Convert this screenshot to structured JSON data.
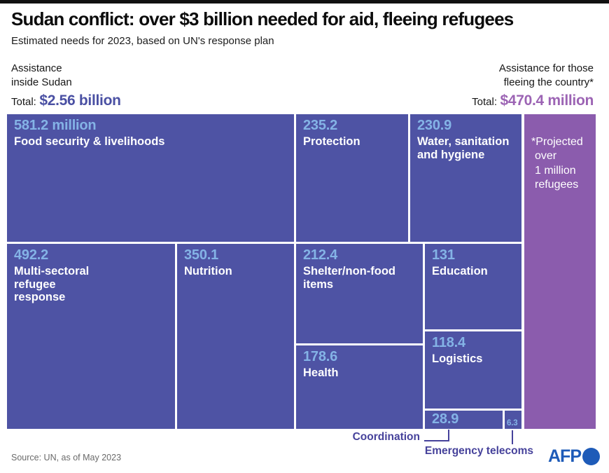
{
  "page": {
    "title": "Sudan conflict: over $3 billion needed for aid, fleeing refugees",
    "subtitle": "Estimated needs for 2023, based on UN's response plan",
    "source": "Source: UN, as of May 2023",
    "logo": "AFP"
  },
  "inside_sudan": {
    "label_lines": [
      "Assistance",
      "inside Sudan"
    ],
    "total_prefix": "Total:",
    "total_value": "$2.56 billion"
  },
  "fleeing": {
    "label_lines": [
      "Assistance for those",
      "fleeing the country*"
    ],
    "total_prefix": "Total:",
    "total_value": "$470.4 million",
    "note_lines": [
      "*Projected",
      "over",
      "1 million",
      "refugees"
    ]
  },
  "callouts": {
    "coordination": "Coordination",
    "telecoms": "Emergency telecoms"
  },
  "chart_data": {
    "type": "treemap",
    "title": "Sudan conflict: over $3 billion needed for aid, fleeing refugees",
    "subtitle": "Estimated needs for 2023, based on UN's response plan",
    "unit": "US$ millions",
    "groups": [
      {
        "name": "Assistance inside Sudan",
        "total_display": "$2.56 billion",
        "items": [
          {
            "id": "food",
            "label": "Food security & livelihoods",
            "label_lines": [
              "Food security & livelihoods"
            ],
            "value": 581.2,
            "display": "581.2 million"
          },
          {
            "id": "multi",
            "label": "Multi-sectoral refugee response",
            "label_lines": [
              "Multi-sectoral",
              "refugee",
              "response"
            ],
            "value": 492.2,
            "display": "492.2"
          },
          {
            "id": "nutrition",
            "label": "Nutrition",
            "label_lines": [
              "Nutrition"
            ],
            "value": 350.1,
            "display": "350.1"
          },
          {
            "id": "protection",
            "label": "Protection",
            "label_lines": [
              "Protection"
            ],
            "value": 235.2,
            "display": "235.2"
          },
          {
            "id": "wash",
            "label": "Water, sanitation and hygiene",
            "label_lines": [
              "Water, sanitation",
              "and hygiene"
            ],
            "value": 230.9,
            "display": "230.9"
          },
          {
            "id": "shelter",
            "label": "Shelter/non-food items",
            "label_lines": [
              "Shelter/non-food",
              "items"
            ],
            "value": 212.4,
            "display": "212.4"
          },
          {
            "id": "health",
            "label": "Health",
            "label_lines": [
              "Health"
            ],
            "value": 178.6,
            "display": "178.6"
          },
          {
            "id": "education",
            "label": "Education",
            "label_lines": [
              "Education"
            ],
            "value": 131,
            "display": "131"
          },
          {
            "id": "logistics",
            "label": "Logistics",
            "label_lines": [
              "Logistics"
            ],
            "value": 118.4,
            "display": "118.4"
          },
          {
            "id": "coordination",
            "label": "Coordination",
            "value": 28.9,
            "display": "28.9",
            "label_outside": true
          },
          {
            "id": "telecoms",
            "label": "Emergency telecoms",
            "value": 6.3,
            "display": "6.3",
            "label_outside": true
          }
        ]
      },
      {
        "name": "Assistance for those fleeing the country*",
        "total_display": "$470.4 million",
        "note": "*Projected over 1 million refugees"
      }
    ]
  },
  "colors": {
    "block_blue": "#4e53a4",
    "block_purple": "#8b5cad",
    "number_blue": "#84b3e6",
    "accent_indigo": "#4a50a3",
    "accent_purple": "#9c64b4",
    "callout_indigo": "#46429b",
    "afp_blue": "#1e5bb8"
  }
}
